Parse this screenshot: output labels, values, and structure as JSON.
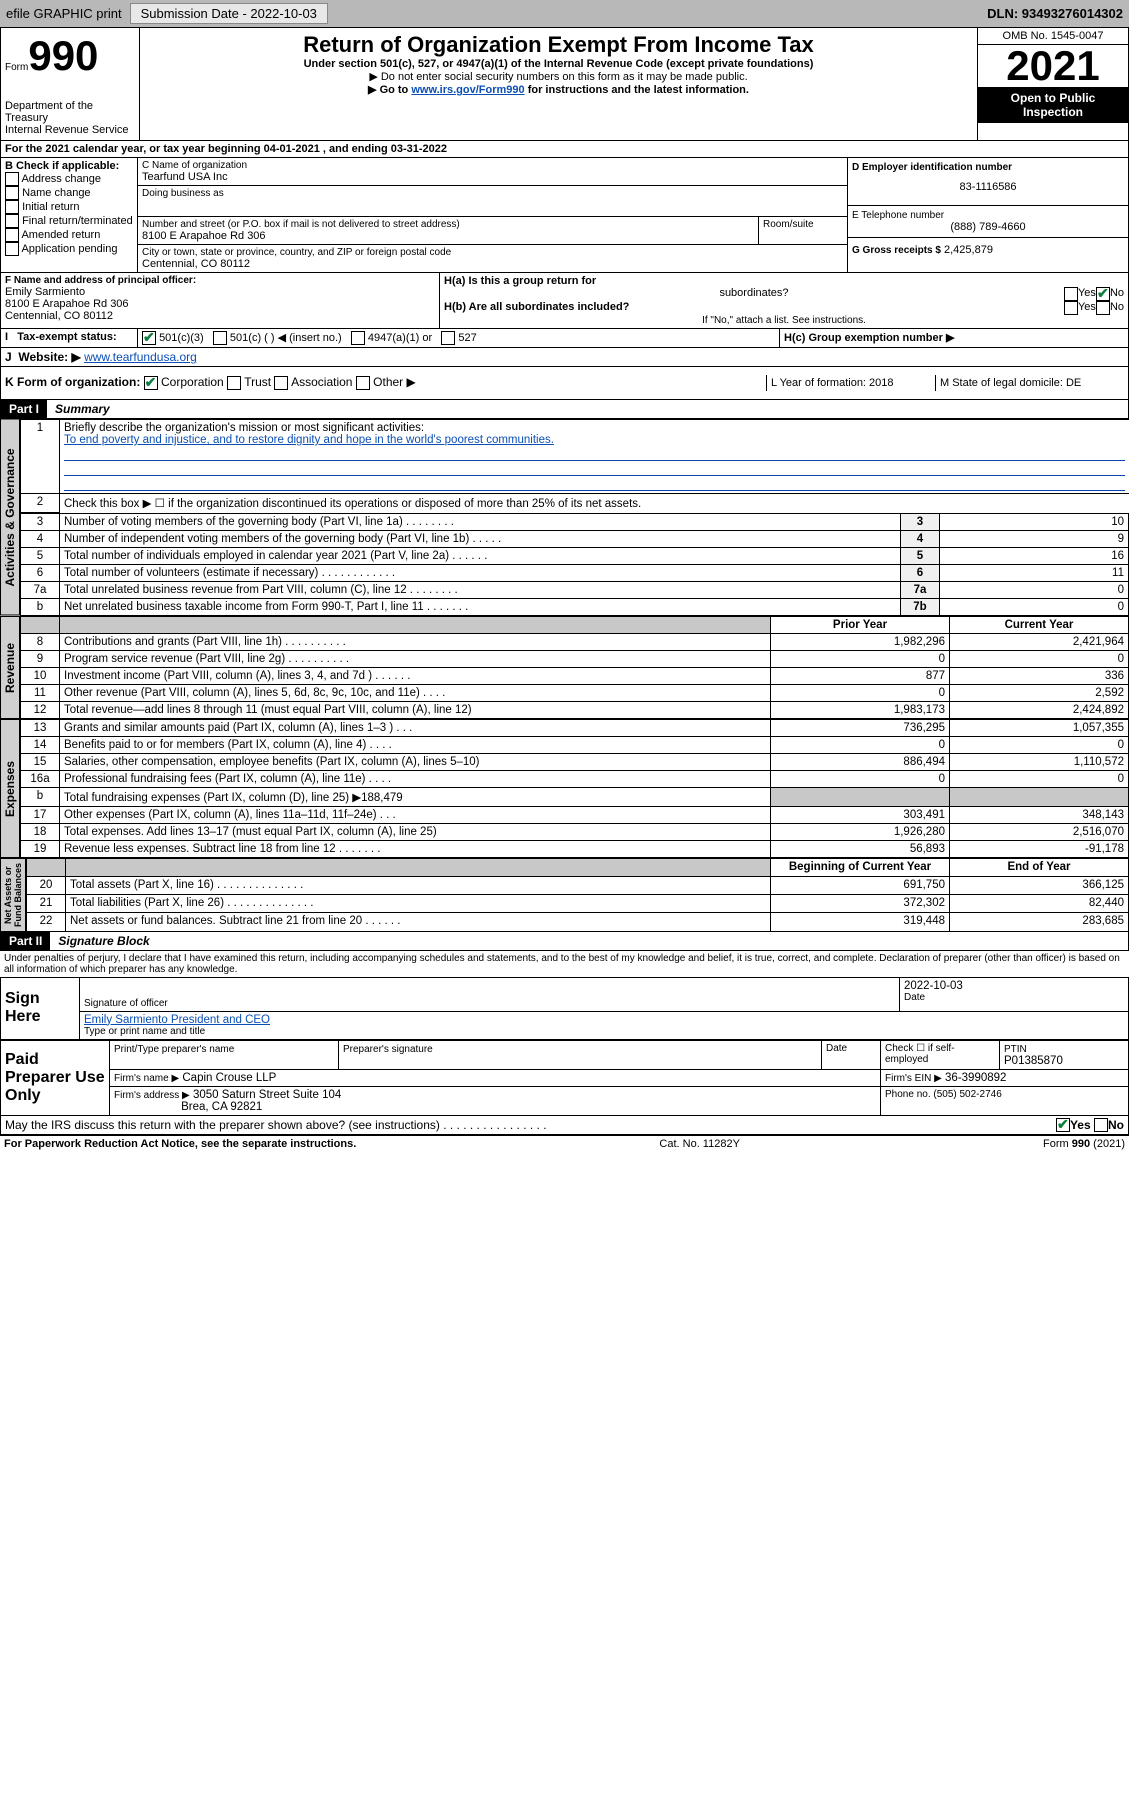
{
  "topbar": {
    "efile": "efile GRAPHIC print",
    "sub_label": "Submission Date - 2022-10-03",
    "dln": "DLN: 93493276014302"
  },
  "hdr": {
    "form_word": "Form",
    "form_num": "990",
    "dept": "Department of the Treasury",
    "irs": "Internal Revenue Service",
    "title": "Return of Organization Exempt From Income Tax",
    "sub1": "Under section 501(c), 527, or 4947(a)(1) of the Internal Revenue Code (except private foundations)",
    "sub2": "▶ Do not enter social security numbers on this form as it may be made public.",
    "sub3a": "▶ Go to ",
    "sub3link": "www.irs.gov/Form990",
    "sub3b": " for instructions and the latest information.",
    "omb": "OMB No. 1545-0047",
    "year": "2021",
    "inspect1": "Open to Public",
    "inspect2": "Inspection"
  },
  "a": {
    "text": "For the 2021 calendar year, or tax year beginning 04-01-2021    , and ending 03-31-2022"
  },
  "b": {
    "label": "B Check if applicable:",
    "opts": [
      "Address change",
      "Name change",
      "Initial return",
      "Final return/terminated",
      "Amended return",
      "Application pending"
    ]
  },
  "c": {
    "name_lbl": "C Name of organization",
    "name": "Tearfund USA Inc",
    "dba_lbl": "Doing business as",
    "addr_lbl": "Number and street (or P.O. box if mail is not delivered to street address)",
    "room_lbl": "Room/suite",
    "addr": "8100 E Arapahoe Rd 306",
    "city_lbl": "City or town, state or province, country, and ZIP or foreign postal code",
    "city": "Centennial, CO  80112"
  },
  "d": {
    "lbl": "D Employer identification number",
    "val": "83-1116586"
  },
  "e": {
    "lbl": "E Telephone number",
    "val": "(888) 789-4660"
  },
  "g": {
    "lbl": "G Gross receipts $",
    "val": "2,425,879"
  },
  "f": {
    "lbl": "F  Name and address of principal officer:",
    "name": "Emily Sarmiento",
    "addr1": "8100 E Arapahoe Rd 306",
    "addr2": "Centennial, CO  80112"
  },
  "h": {
    "a": "H(a)  Is this a group return for",
    "a2": "subordinates?",
    "b": "H(b)  Are all subordinates included?",
    "note": "If \"No,\" attach a list. See instructions.",
    "c": "H(c)  Group exemption number ▶",
    "yes": "Yes",
    "no": "No"
  },
  "i": {
    "lbl": "Tax-exempt status:",
    "o1": "501(c)(3)",
    "o2": "501(c) (  ) ◀ (insert no.)",
    "o3": "4947(a)(1) or",
    "o4": "527"
  },
  "j": {
    "lbl": "Website: ▶",
    "val": "www.tearfundusa.org"
  },
  "k": {
    "lbl": "K Form of organization:",
    "o1": "Corporation",
    "o2": "Trust",
    "o3": "Association",
    "o4": "Other ▶"
  },
  "l": {
    "lbl": "L Year of formation: 2018"
  },
  "m": {
    "lbl": "M State of legal domicile: DE"
  },
  "p1": {
    "part": "Part I",
    "title": "Summary",
    "l1": "Briefly describe the organization's mission or most significant activities:",
    "l1v": "To end poverty and injustice, and to restore dignity and hope in the world's poorest communities.",
    "l2": "Check this box ▶ ☐  if the organization discontinued its operations or disposed of more than 25% of its net assets.",
    "rows": [
      {
        "n": "3",
        "t": "Number of voting members of the governing body (Part VI, line 1a)   .   .   .   .   .   .   .   .",
        "nb": "3",
        "v": "10"
      },
      {
        "n": "4",
        "t": "Number of independent voting members of the governing body (Part VI, line 1b)   .   .   .   .   .",
        "nb": "4",
        "v": "9"
      },
      {
        "n": "5",
        "t": "Total number of individuals employed in calendar year 2021 (Part V, line 2a)   .   .   .   .   .   .",
        "nb": "5",
        "v": "16"
      },
      {
        "n": "6",
        "t": "Total number of volunteers (estimate if necessary)   .   .   .   .   .   .   .   .   .   .   .   .",
        "nb": "6",
        "v": "11"
      },
      {
        "n": "7a",
        "t": "Total unrelated business revenue from Part VIII, column (C), line 12   .   .   .   .   .   .   .   .",
        "nb": "7a",
        "v": "0"
      },
      {
        "n": "b",
        "t": "Net unrelated business taxable income from Form 990-T, Part I, line 11   .   .   .   .   .   .   .",
        "nb": "7b",
        "v": "0"
      }
    ],
    "prior": "Prior Year",
    "current": "Current Year",
    "rev": [
      {
        "n": "8",
        "t": "Contributions and grants (Part VIII, line 1h)   .   .   .   .   .   .   .   .   .   .",
        "p": "1,982,296",
        "c": "2,421,964"
      },
      {
        "n": "9",
        "t": "Program service revenue (Part VIII, line 2g)   .   .   .   .   .   .   .   .   .   .",
        "p": "0",
        "c": "0"
      },
      {
        "n": "10",
        "t": "Investment income (Part VIII, column (A), lines 3, 4, and 7d )   .   .   .   .   .   .",
        "p": "877",
        "c": "336"
      },
      {
        "n": "11",
        "t": "Other revenue (Part VIII, column (A), lines 5, 6d, 8c, 9c, 10c, and 11e)   .   .   .   .",
        "p": "0",
        "c": "2,592"
      },
      {
        "n": "12",
        "t": "Total revenue—add lines 8 through 11 (must equal Part VIII, column (A), line 12)",
        "p": "1,983,173",
        "c": "2,424,892"
      }
    ],
    "exp": [
      {
        "n": "13",
        "t": "Grants and similar amounts paid (Part IX, column (A), lines 1–3 )   .   .   .",
        "p": "736,295",
        "c": "1,057,355"
      },
      {
        "n": "14",
        "t": "Benefits paid to or for members (Part IX, column (A), line 4)   .   .   .   .",
        "p": "0",
        "c": "0"
      },
      {
        "n": "15",
        "t": "Salaries, other compensation, employee benefits (Part IX, column (A), lines 5–10)",
        "p": "886,494",
        "c": "1,110,572"
      },
      {
        "n": "16a",
        "t": "Professional fundraising fees (Part IX, column (A), line 11e)   .   .   .   .",
        "p": "0",
        "c": "0"
      },
      {
        "n": "b",
        "t": "Total fundraising expenses (Part IX, column (D), line 25) ▶188,479",
        "p": "",
        "c": "",
        "grey": true
      },
      {
        "n": "17",
        "t": "Other expenses (Part IX, column (A), lines 11a–11d, 11f–24e)   .   .   .",
        "p": "303,491",
        "c": "348,143"
      },
      {
        "n": "18",
        "t": "Total expenses. Add lines 13–17 (must equal Part IX, column (A), line 25)",
        "p": "1,926,280",
        "c": "2,516,070"
      },
      {
        "n": "19",
        "t": "Revenue less expenses. Subtract line 18 from line 12   .   .   .   .   .   .   .",
        "p": "56,893",
        "c": "-91,178"
      }
    ],
    "boy": "Beginning of Current Year",
    "eoy": "End of Year",
    "bal": [
      {
        "n": "20",
        "t": "Total assets (Part X, line 16)   .   .   .   .   .   .   .   .   .   .   .   .   .   .",
        "p": "691,750",
        "c": "366,125"
      },
      {
        "n": "21",
        "t": "Total liabilities (Part X, line 26)   .   .   .   .   .   .   .   .   .   .   .   .   .   .",
        "p": "372,302",
        "c": "82,440"
      },
      {
        "n": "22",
        "t": "Net assets or fund balances. Subtract line 21 from line 20   .   .   .   .   .   .",
        "p": "319,448",
        "c": "283,685"
      }
    ]
  },
  "p2": {
    "part": "Part II",
    "title": "Signature Block",
    "decl": "Under penalties of perjury, I declare that I have examined this return, including accompanying schedules and statements, and to the best of my knowledge and belief, it is true, correct, and complete. Declaration of preparer (other than officer) is based on all information of which preparer has any knowledge.",
    "sign": "Sign Here",
    "sig_lbl": "Signature of officer",
    "date_lbl": "Date",
    "date": "2022-10-03",
    "officer": "Emily Sarmiento  President and CEO",
    "type_lbl": "Type or print name and title",
    "paid": "Paid Preparer Use Only",
    "prep_lbl": "Print/Type preparer's name",
    "prepsig_lbl": "Preparer's signature",
    "chk_lbl": "Check ☐ if self-employed",
    "ptin_lbl": "PTIN",
    "ptin": "P01385870",
    "firm_lbl": "Firm's name    ▶",
    "firm": "Capin Crouse LLP",
    "ein_lbl": "Firm's EIN ▶",
    "ein": "36-3990892",
    "faddr_lbl": "Firm's address ▶",
    "faddr1": "3050 Saturn Street Suite 104",
    "faddr2": "Brea, CA  92821",
    "phone_lbl": "Phone no. (505) 502-2746",
    "discuss": "May the IRS discuss this return with the preparer shown above? (see instructions)   .   .   .   .   .   .   .   .   .   .   .   .   .   .   .   .",
    "yes": "Yes",
    "no": "No"
  },
  "footer": {
    "pra": "For Paperwork Reduction Act Notice, see the separate instructions.",
    "cat": "Cat. No. 11282Y",
    "form": "Form 990 (2021)"
  }
}
